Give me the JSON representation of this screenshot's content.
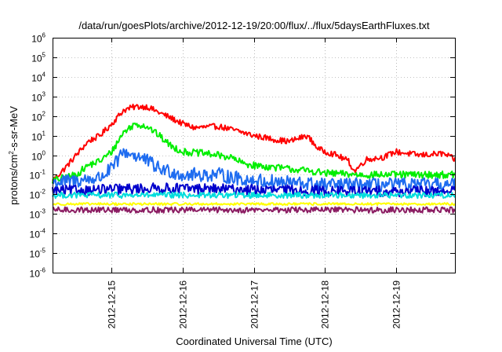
{
  "chart_data": {
    "type": "line",
    "title": "/data/run/goesPlots/archive/2012-12-19/20:00/flux/../flux/5daysEarthFluxes.txt",
    "xlabel": "Coordinated Universal Time (UTC)",
    "ylabel": {
      "base": "protons/cm",
      "sup": "2",
      "rest": "-s-sr-MeV"
    },
    "y_scale": "log",
    "ylim": [
      1e-06,
      1000000.0
    ],
    "xlim": [
      "2012-12-14T04:00",
      "2012-12-19T20:00"
    ],
    "grid": true,
    "legend": "none",
    "y_ticks": [
      {
        "value": 1e-06,
        "base": "10",
        "exp": "-6"
      },
      {
        "value": 1e-05,
        "base": "10",
        "exp": "-5"
      },
      {
        "value": 0.0001,
        "base": "10",
        "exp": "-4"
      },
      {
        "value": 0.001,
        "base": "10",
        "exp": "-3"
      },
      {
        "value": 0.01,
        "base": "10",
        "exp": "-2"
      },
      {
        "value": 0.1,
        "base": "10",
        "exp": "-1"
      },
      {
        "value": 1.0,
        "base": "10",
        "exp": "0"
      },
      {
        "value": 10.0,
        "base": "10",
        "exp": "1"
      },
      {
        "value": 100.0,
        "base": "10",
        "exp": "2"
      },
      {
        "value": 1000.0,
        "base": "10",
        "exp": "3"
      },
      {
        "value": 10000.0,
        "base": "10",
        "exp": "4"
      },
      {
        "value": 100000.0,
        "base": "10",
        "exp": "5"
      },
      {
        "value": 1000000.0,
        "base": "10",
        "exp": "6"
      }
    ],
    "x_ticks": [
      {
        "value": "2012-12-15T00:00",
        "label": "2012-12-15"
      },
      {
        "value": "2012-12-16T00:00",
        "label": "2012-12-16"
      },
      {
        "value": "2012-12-17T00:00",
        "label": "2012-12-17"
      },
      {
        "value": "2012-12-18T00:00",
        "label": "2012-12-18"
      },
      {
        "value": "2012-12-19T00:00",
        "label": "2012-12-19"
      }
    ],
    "series": [
      {
        "color": "#ff0000",
        "noise": 0.05,
        "points": [
          [
            "2012-12-14T04:00",
            0.05
          ],
          [
            "2012-12-14T08:00",
            0.2
          ],
          [
            "2012-12-14T12:00",
            1.0
          ],
          [
            "2012-12-14T16:00",
            5
          ],
          [
            "2012-12-14T20:00",
            10
          ],
          [
            "2012-12-15T00:00",
            40
          ],
          [
            "2012-12-15T04:00",
            200
          ],
          [
            "2012-12-15T08:00",
            300
          ],
          [
            "2012-12-15T12:00",
            300
          ],
          [
            "2012-12-15T16:00",
            150
          ],
          [
            "2012-12-15T20:00",
            80
          ],
          [
            "2012-12-16T00:00",
            40
          ],
          [
            "2012-12-16T04:00",
            25
          ],
          [
            "2012-12-16T12:00",
            30
          ],
          [
            "2012-12-16T20:00",
            15
          ],
          [
            "2012-12-17T00:00",
            10
          ],
          [
            "2012-12-17T08:00",
            6
          ],
          [
            "2012-12-17T12:00",
            5
          ],
          [
            "2012-12-17T18:00",
            10
          ],
          [
            "2012-12-17T22:00",
            2
          ],
          [
            "2012-12-18T04:00",
            1
          ],
          [
            "2012-12-18T08:00",
            0.5
          ],
          [
            "2012-12-18T10:00",
            0.15
          ],
          [
            "2012-12-18T14:00",
            0.6
          ],
          [
            "2012-12-18T20:00",
            0.8
          ],
          [
            "2012-12-19T00:00",
            1.5
          ],
          [
            "2012-12-19T08:00",
            1.0
          ],
          [
            "2012-12-19T16:00",
            1.2
          ],
          [
            "2012-12-19T20:00",
            0.6
          ]
        ]
      },
      {
        "color": "#00ee00",
        "noise": 0.06,
        "points": [
          [
            "2012-12-14T04:00",
            0.05
          ],
          [
            "2012-12-14T12:00",
            0.1
          ],
          [
            "2012-12-14T16:00",
            0.3
          ],
          [
            "2012-12-14T20:00",
            0.5
          ],
          [
            "2012-12-15T00:00",
            1.5
          ],
          [
            "2012-12-15T04:00",
            15
          ],
          [
            "2012-12-15T08:00",
            40
          ],
          [
            "2012-12-15T12:00",
            30
          ],
          [
            "2012-12-15T16:00",
            10
          ],
          [
            "2012-12-15T20:00",
            3
          ],
          [
            "2012-12-16T00:00",
            1.5
          ],
          [
            "2012-12-16T08:00",
            1.2
          ],
          [
            "2012-12-16T16:00",
            0.8
          ],
          [
            "2012-12-16T20:00",
            0.4
          ],
          [
            "2012-12-17T00:00",
            0.3
          ],
          [
            "2012-12-17T12:00",
            0.2
          ],
          [
            "2012-12-17T20:00",
            0.15
          ],
          [
            "2012-12-18T00:00",
            0.12
          ],
          [
            "2012-12-18T12:00",
            0.1
          ],
          [
            "2012-12-19T00:00",
            0.1
          ],
          [
            "2012-12-19T20:00",
            0.1
          ]
        ]
      },
      {
        "color": "#1e6cf0",
        "noise": 0.12,
        "points": [
          [
            "2012-12-14T04:00",
            0.04
          ],
          [
            "2012-12-14T12:00",
            0.05
          ],
          [
            "2012-12-14T20:00",
            0.07
          ],
          [
            "2012-12-15T00:00",
            0.2
          ],
          [
            "2012-12-15T04:00",
            1.5
          ],
          [
            "2012-12-15T08:00",
            1.0
          ],
          [
            "2012-12-15T12:00",
            0.5
          ],
          [
            "2012-12-15T16:00",
            0.2
          ],
          [
            "2012-12-15T20:00",
            0.15
          ],
          [
            "2012-12-16T00:00",
            0.1
          ],
          [
            "2012-12-16T12:00",
            0.1
          ],
          [
            "2012-12-16T20:00",
            0.06
          ],
          [
            "2012-12-17T00:00",
            0.05
          ],
          [
            "2012-12-17T12:00",
            0.04
          ],
          [
            "2012-12-18T00:00",
            0.03
          ],
          [
            "2012-12-18T12:00",
            0.03
          ],
          [
            "2012-12-19T00:00",
            0.03
          ],
          [
            "2012-12-19T20:00",
            0.03
          ]
        ]
      },
      {
        "color": "#0000cc",
        "noise": 0.09,
        "points": [
          [
            "2012-12-14T04:00",
            0.015
          ],
          [
            "2012-12-14T20:00",
            0.017
          ],
          [
            "2012-12-15T12:00",
            0.02
          ],
          [
            "2012-12-16T00:00",
            0.02
          ],
          [
            "2012-12-17T00:00",
            0.017
          ],
          [
            "2012-12-18T00:00",
            0.015
          ],
          [
            "2012-12-19T00:00",
            0.014
          ],
          [
            "2012-12-19T20:00",
            0.015
          ]
        ]
      },
      {
        "color": "#00dddd",
        "noise": 0.05,
        "points": [
          [
            "2012-12-14T04:00",
            0.009
          ],
          [
            "2012-12-19T20:00",
            0.009
          ]
        ]
      },
      {
        "color": "#ffff00",
        "noise": 0.02,
        "points": [
          [
            "2012-12-14T04:00",
            0.0032
          ],
          [
            "2012-12-19T20:00",
            0.0032
          ]
        ]
      },
      {
        "color": "#8b1c62",
        "noise": 0.05,
        "points": [
          [
            "2012-12-14T04:00",
            0.0016
          ],
          [
            "2012-12-19T20:00",
            0.0016
          ]
        ]
      }
    ]
  }
}
